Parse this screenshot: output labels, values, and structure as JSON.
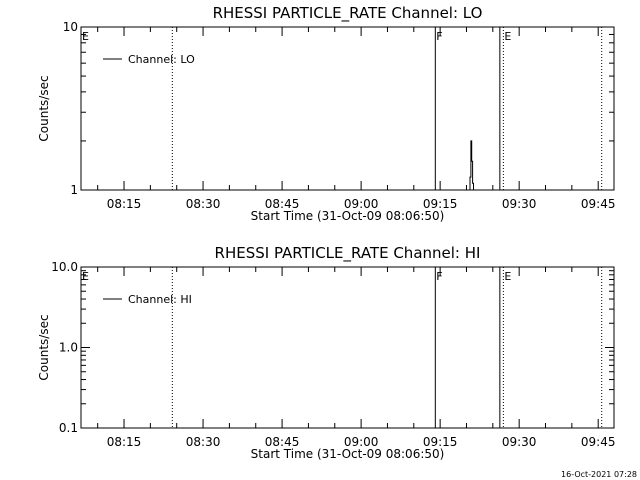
{
  "chart_data": [
    {
      "type": "line",
      "title": "RHESSI PARTICLE_RATE Channel: LO",
      "xlabel": "Start Time (31-Oct-09 08:06:50)",
      "ylabel": "Counts/sec",
      "yscale": "log",
      "ylim": [
        1,
        10
      ],
      "y_ticks": [
        "1",
        "10"
      ],
      "xlim": [
        "08:06:50",
        "09:48:00"
      ],
      "x_ticks": [
        "08:15",
        "08:30",
        "08:45",
        "09:00",
        "09:15",
        "09:30",
        "09:45"
      ],
      "legend": "top-left",
      "series": [
        {
          "name": "Channel: LO",
          "x": [
            "09:20:20",
            "09:20:40",
            "09:20:50",
            "09:21:00",
            "09:21:10",
            "09:21:20"
          ],
          "y": [
            1,
            1.2,
            2,
            1.5,
            1.1,
            1
          ]
        }
      ],
      "markers": [
        {
          "label": "E",
          "time": "08:06:50",
          "style": "none"
        },
        {
          "label": "",
          "time": "08:24:10",
          "style": "dotted"
        },
        {
          "label": "F",
          "time": "09:14:05",
          "style": "solid"
        },
        {
          "label": "",
          "time": "09:26:20",
          "style": "solid"
        },
        {
          "label": "E",
          "time": "09:27:00",
          "style": "dotted"
        },
        {
          "label": "",
          "time": "09:45:40",
          "style": "dotted"
        }
      ]
    },
    {
      "type": "line",
      "title": "RHESSI PARTICLE_RATE Channel: HI",
      "xlabel": "Start Time (31-Oct-09 08:06:50)",
      "ylabel": "Counts/sec",
      "yscale": "log",
      "ylim": [
        0.1,
        10
      ],
      "y_ticks": [
        "0.1",
        "1.0",
        "10.0"
      ],
      "xlim": [
        "08:06:50",
        "09:48:00"
      ],
      "x_ticks": [
        "08:15",
        "08:30",
        "08:45",
        "09:00",
        "09:15",
        "09:30",
        "09:45"
      ],
      "legend": "top-left",
      "series": [
        {
          "name": "Channel: HI",
          "x": [],
          "y": []
        }
      ],
      "markers": [
        {
          "label": "E",
          "time": "08:06:50",
          "style": "none"
        },
        {
          "label": "",
          "time": "08:24:10",
          "style": "dotted"
        },
        {
          "label": "F",
          "time": "09:14:05",
          "style": "solid"
        },
        {
          "label": "",
          "time": "09:26:20",
          "style": "solid"
        },
        {
          "label": "E",
          "time": "09:27:00",
          "style": "dotted"
        },
        {
          "label": "",
          "time": "09:45:40",
          "style": "dotted"
        }
      ]
    }
  ],
  "timestamp": "16-Oct-2021 07:28"
}
